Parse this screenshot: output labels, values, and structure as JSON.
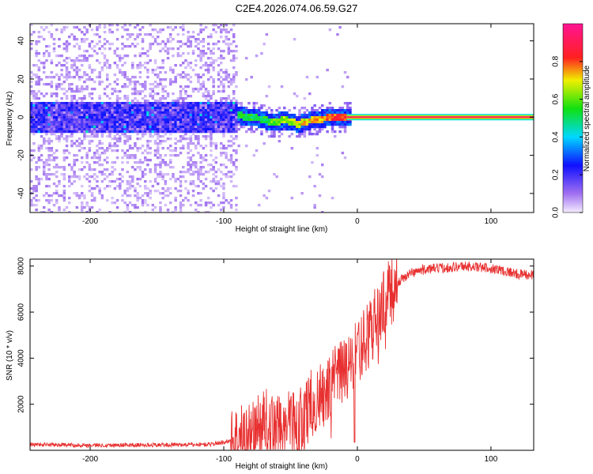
{
  "title": "C2E4.2026.074.06.59.G27",
  "colors": {
    "snr_line": "#e83030",
    "frame": "#000000",
    "spectro_band": "#5a0fe0",
    "spectro_faint": "#c9a8f5",
    "spectro_ridge": "#ff2a5f"
  },
  "chart_data": [
    {
      "type": "heatmap",
      "title": "",
      "xlabel": "Height of straight line (km)",
      "ylabel": "Frequency (Hz)",
      "xlim": [
        -245,
        132
      ],
      "ylim": [
        -50,
        49
      ],
      "xticks": [
        -200,
        -100,
        0,
        100
      ],
      "yticks": [
        -40,
        -20,
        0,
        20,
        40
      ],
      "xtick_labels": [
        "-200",
        "-100",
        "0",
        "100"
      ],
      "ytick_labels": [
        "-40",
        "-20",
        "0",
        "20",
        "40"
      ],
      "grid": false,
      "colorbar": {
        "label": "Normalized spectral amplitude",
        "range": [
          0,
          1
        ],
        "ticks": [
          0.0,
          0.2,
          0.4,
          0.6,
          0.8
        ],
        "tick_labels": [
          "0.0",
          "0.2",
          "0.4",
          "0.6",
          "0.8"
        ],
        "colormap": "rainbow: light violet → blue → cyan → green → yellow → red → magenta"
      },
      "features": {
        "noise_region_x": [
          -245,
          -90
        ],
        "noise_band_half_width_hz": 8,
        "ridge_points": [
          {
            "x": -95,
            "y": 2,
            "amp": 0.55
          },
          {
            "x": -85,
            "y": 1,
            "amp": 0.6
          },
          {
            "x": -75,
            "y": 0,
            "amp": 0.6
          },
          {
            "x": -65,
            "y": -2,
            "amp": 0.65
          },
          {
            "x": -55,
            "y": -1,
            "amp": 0.7
          },
          {
            "x": -45,
            "y": -3,
            "amp": 0.75
          },
          {
            "x": -35,
            "y": -1,
            "amp": 0.8
          },
          {
            "x": -25,
            "y": 0,
            "amp": 0.85
          },
          {
            "x": -15,
            "y": 1,
            "amp": 0.9
          },
          {
            "x": -5,
            "y": 0,
            "amp": 0.92
          },
          {
            "x": 132,
            "y": 0,
            "amp": 0.95
          }
        ]
      }
    },
    {
      "type": "line",
      "title": "",
      "xlabel": "Height of straight line (km)",
      "ylabel": "SNR (10 * v/v)",
      "xlim": [
        -245,
        132
      ],
      "ylim": [
        0,
        8300
      ],
      "xticks": [
        -200,
        -100,
        0,
        100
      ],
      "yticks": [
        2000,
        4000,
        6000,
        8000
      ],
      "xtick_labels": [
        "-200",
        "-100",
        "0",
        "100"
      ],
      "ytick_labels": [
        "2000",
        "4000",
        "6000",
        "8000"
      ],
      "grid": false,
      "series": [
        {
          "name": "SNR",
          "x": [
            -245,
            -200,
            -150,
            -110,
            -100,
            -90,
            -80,
            -75,
            -70,
            -65,
            -60,
            -55,
            -50,
            -45,
            -40,
            -35,
            -30,
            -25,
            -20,
            -15,
            -10,
            -5,
            0,
            5,
            10,
            15,
            20,
            25,
            30,
            35,
            40,
            50,
            60,
            70,
            80,
            90,
            100,
            110,
            120,
            132
          ],
          "y": [
            250,
            220,
            230,
            260,
            350,
            500,
            700,
            900,
            1200,
            1100,
            1000,
            950,
            1300,
            1100,
            1500,
            2000,
            2200,
            2400,
            2700,
            3200,
            3400,
            3700,
            4200,
            4700,
            5200,
            5800,
            6400,
            6900,
            7300,
            7500,
            7700,
            7850,
            7900,
            7950,
            8000,
            7950,
            7900,
            7800,
            7650,
            7600
          ]
        }
      ]
    }
  ]
}
